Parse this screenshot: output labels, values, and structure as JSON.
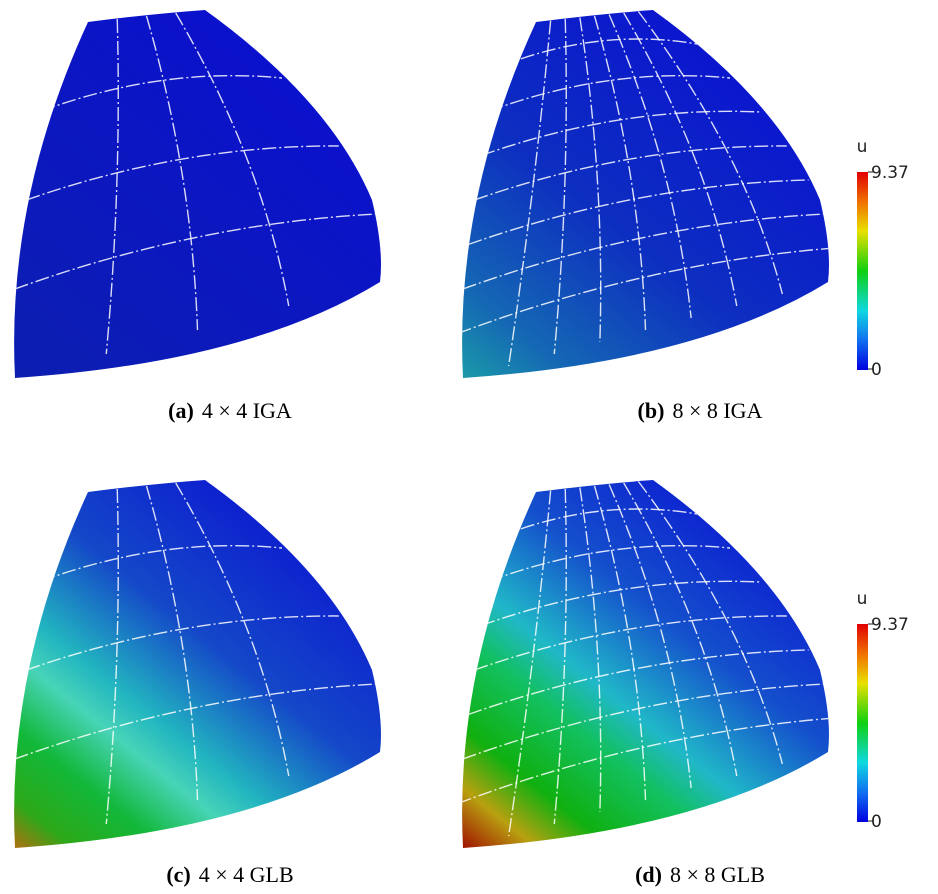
{
  "panels": [
    {
      "label": "(a)",
      "caption": "4 × 4 IGA"
    },
    {
      "label": "(b)",
      "caption": "8 × 8 IGA"
    },
    {
      "label": "(c)",
      "caption": "4 × 4 GLB"
    },
    {
      "label": "(d)",
      "caption": "8 × 8 GLB"
    }
  ],
  "colorbars": [
    {
      "title": "u",
      "max_label": "9.37",
      "min_label": "0"
    },
    {
      "title": "u",
      "max_label": "9.37",
      "min_label": "0"
    }
  ]
}
